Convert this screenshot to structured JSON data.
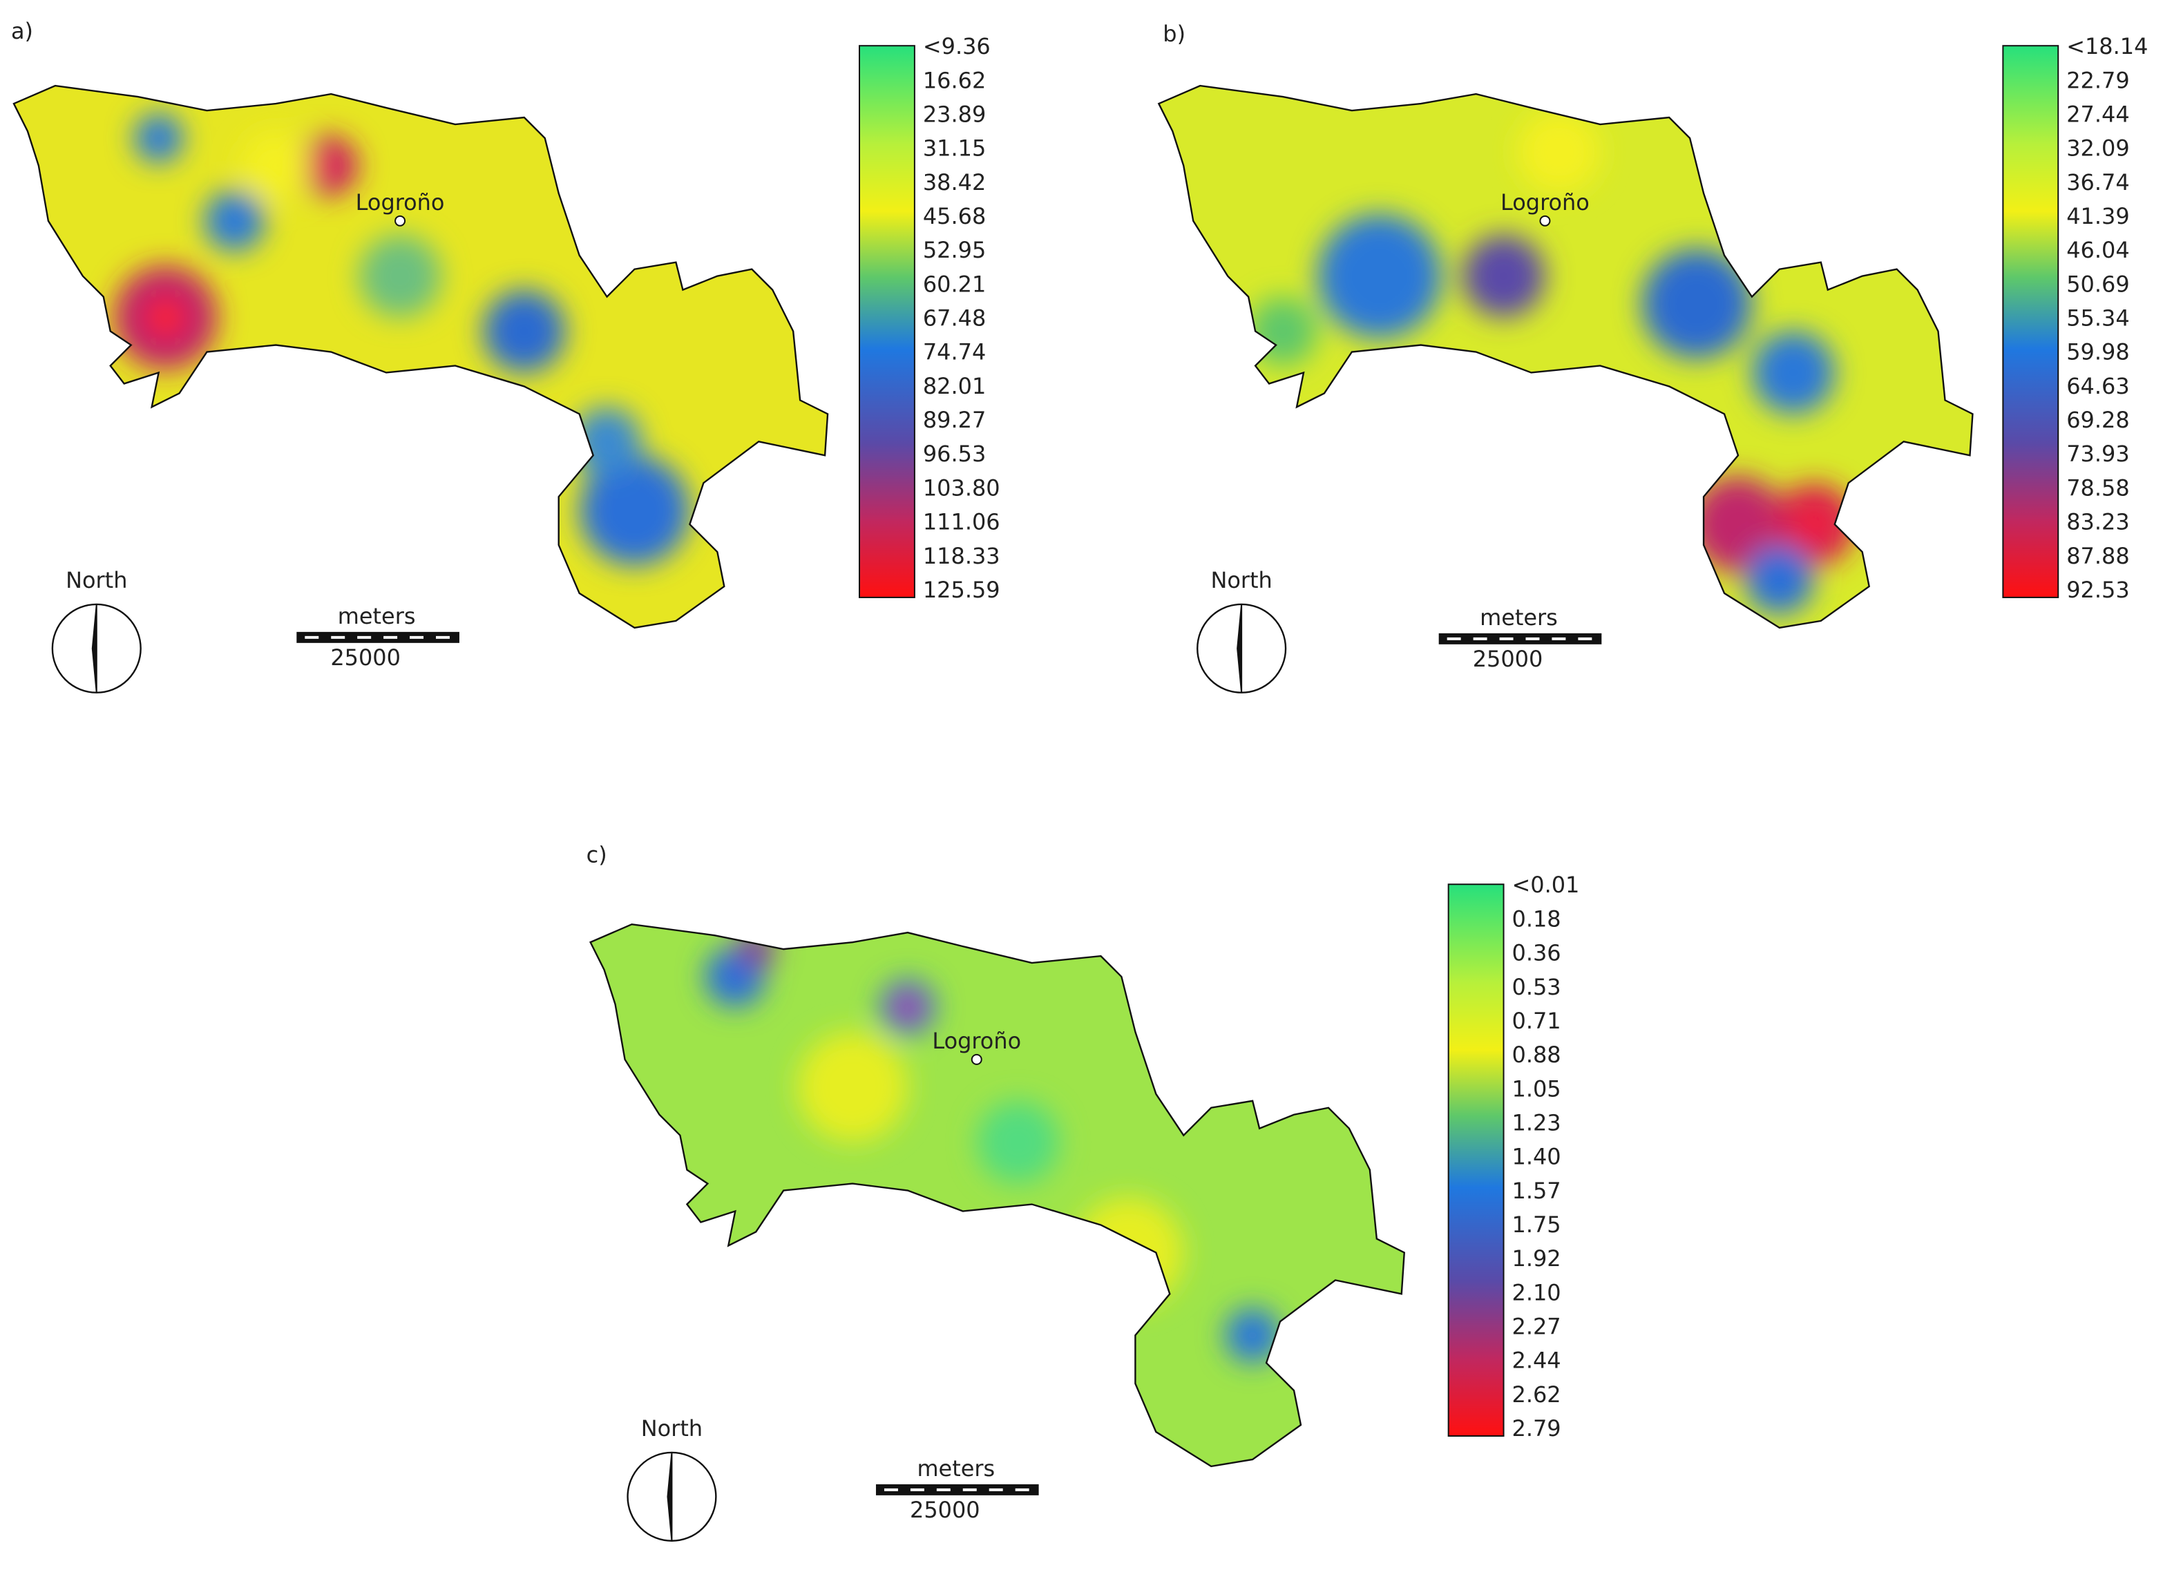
{
  "panels": [
    {
      "label": "a)",
      "city": "Logroño",
      "north": "North",
      "scale_unit": "meters",
      "scale_distance": "25000",
      "legend": [
        "<9.36",
        "16.62",
        "23.89",
        "31.15",
        "38.42",
        "45.68",
        "52.95",
        "60.21",
        "67.48",
        "74.74",
        "82.01",
        "89.27",
        "96.53",
        "103.80",
        "111.06",
        "118.33",
        "125.59"
      ]
    },
    {
      "label": "b)",
      "city": "Logroño",
      "north": "North",
      "scale_unit": "meters",
      "scale_distance": "25000",
      "legend": [
        "<18.14",
        "22.79",
        "27.44",
        "32.09",
        "36.74",
        "41.39",
        "46.04",
        "50.69",
        "55.34",
        "59.98",
        "64.63",
        "69.28",
        "73.93",
        "78.58",
        "83.23",
        "87.88",
        "92.53"
      ]
    },
    {
      "label": "c)",
      "city": "Logroño",
      "north": "North",
      "scale_unit": "meters",
      "scale_distance": "25000",
      "legend": [
        "<0.01",
        "0.18",
        "0.36",
        "0.53",
        "0.71",
        "0.88",
        "1.05",
        "1.23",
        "1.40",
        "1.57",
        "1.75",
        "1.92",
        "2.10",
        "2.27",
        "2.44",
        "2.62",
        "2.79"
      ]
    }
  ]
}
